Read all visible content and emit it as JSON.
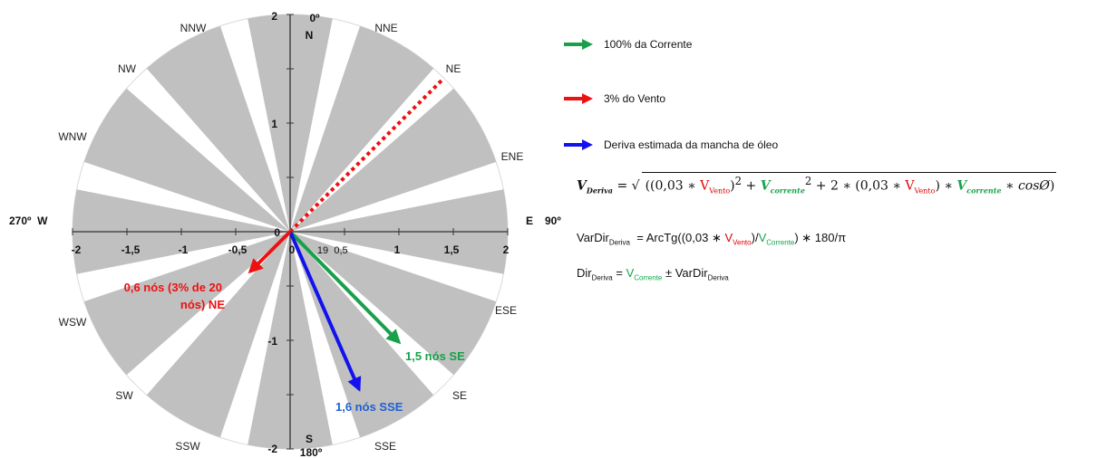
{
  "rose": {
    "direction_labels": [
      "NNW",
      "NNE",
      "NW",
      "NE",
      "WNW",
      "ENE",
      "WSW",
      "ESE",
      "SW",
      "SE",
      "SSW",
      "SSE"
    ],
    "cardinals": {
      "north_deg": "0º",
      "north": "N",
      "south": "S",
      "south_deg": "180º",
      "west": "270º  W",
      "east": "E",
      "east_deg": "90º"
    },
    "x_ticks": [
      "-2",
      "-1,5",
      "-1",
      "-0,5",
      "0",
      "0,5",
      "1",
      "1,5",
      "2"
    ],
    "y_ticks": [
      "2",
      "1",
      "0",
      "-1",
      "-2"
    ],
    "stray_label": "19",
    "colors": {
      "sector": "#c0c0c0",
      "current": "#18a04a",
      "wind": "#ee1111",
      "drift": "#1212ee",
      "drift_label": "#1f5fd1"
    }
  },
  "annotations": {
    "wind_line1": "0,6 nós (3% de 20",
    "wind_line2": "nós) NE",
    "current": "1,5 nós SE",
    "drift": "1,6 nós SSE"
  },
  "legend": {
    "current": "100% da Corrente",
    "wind": "3% do Vento",
    "drift": "Deriva estimada da mancha de óleo"
  },
  "equations": {
    "v_deriva": "V",
    "v_deriva_sub": "Deriva",
    "eq_sign": " = ",
    "p1": "((0,03 ∗ ",
    "v_vento": "V",
    "v_vento_sub": "Vento",
    "p2": ")",
    "sq": "2",
    "p3": " + ",
    "v_corrente": "V",
    "v_corrente_sub": "corrente",
    "sq2": "2",
    "p4": " + 2 ∗ (0,03 ∗ ",
    "v_vento2": "V",
    "v_vento2_sub": "Vento",
    "p5": ") ∗ ",
    "v_corrente2": "V",
    "v_corrente2_sub": "corrente",
    "p6": " ∗ ",
    "cos": "cosØ",
    "p7": ")",
    "vardir": "VarDir",
    "vardir_sub": "Deriva",
    "vardir_eq": "  = ArcTg((0,03 ∗ ",
    "vardir_v": "V",
    "vardir_v_sub": "Vento",
    "vardir_slash": ")/",
    "vardir_vc": "V",
    "vardir_vc_sub": "Corrente",
    "vardir_end": ") ∗ 180/π",
    "dir": "Dir",
    "dir_sub": "Deriva",
    "dir_eq": " = ",
    "dir_v": "V",
    "dir_v_sub": "Corrente",
    "dir_pm": " ± VarDir",
    "dir_pm_sub": "Deriva"
  }
}
